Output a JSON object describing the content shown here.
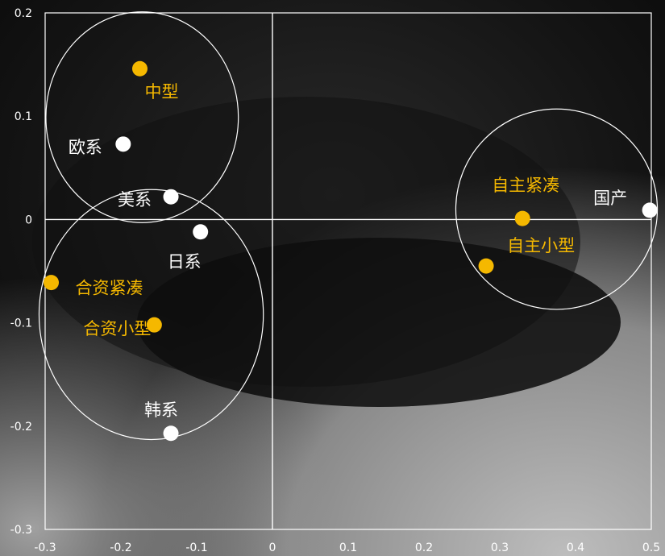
{
  "chart_data": {
    "type": "scatter",
    "title": "",
    "xlabel": "",
    "ylabel": "",
    "xlim": [
      -0.3,
      0.5
    ],
    "ylim": [
      -0.3,
      0.2
    ],
    "x_ticks": [
      "-0.3",
      "-0.2",
      "-0.1",
      "0",
      "0.1",
      "0.2",
      "0.3",
      "0.4",
      "0.5"
    ],
    "y_ticks": [
      "0.2",
      "0.1",
      "0",
      "-0.1",
      "-0.2",
      "-0.3"
    ],
    "grid": false,
    "colors": {
      "brand_series": "#f5b800",
      "origin_series": "#ffffff"
    },
    "series": [
      {
        "points": [
          {
            "label": "中型",
            "x": -0.175,
            "y": 0.146
          },
          {
            "label": "合资紧凑",
            "x": -0.292,
            "y": -0.061
          },
          {
            "label": "合资小型",
            "x": -0.156,
            "y": -0.102
          },
          {
            "label": "自主紧凑",
            "x": 0.33,
            "y": 0.001
          },
          {
            "label": "自主小型",
            "x": 0.282,
            "y": -0.045
          }
        ]
      },
      {
        "points": [
          {
            "label": "欧系",
            "x": -0.197,
            "y": 0.073
          },
          {
            "label": "美系",
            "x": -0.134,
            "y": 0.022
          },
          {
            "label": "日系",
            "x": -0.095,
            "y": -0.012
          },
          {
            "label": "韩系",
            "x": -0.134,
            "y": -0.207
          },
          {
            "label": "国产",
            "x": 0.498,
            "y": 0.009
          }
        ]
      }
    ],
    "clusters": [
      {
        "cx": -0.172,
        "cy": 0.099,
        "rx": 0.127,
        "ry": 0.102
      },
      {
        "cx": -0.16,
        "cy": -0.092,
        "rx": 0.148,
        "ry": 0.121
      },
      {
        "cx": 0.375,
        "cy": 0.01,
        "rx": 0.133,
        "ry": 0.097
      }
    ]
  }
}
